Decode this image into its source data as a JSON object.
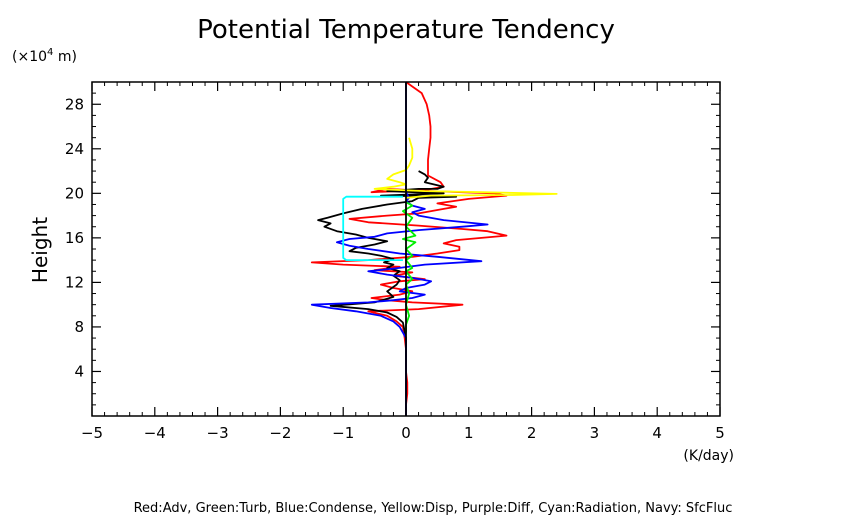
{
  "chart_data": {
    "type": "line",
    "title": "Potential Temperature Tendency",
    "ylabel": "Height",
    "y_units_prefix": "(×10",
    "y_units_exp": "4",
    "y_units_suffix": " m)",
    "x_units": "(K/day)",
    "xlim": [
      -5,
      5
    ],
    "ylim": [
      0,
      30
    ],
    "xticks": [
      -5,
      -4,
      -3,
      -2,
      -1,
      0,
      1,
      2,
      3,
      4,
      5
    ],
    "yticks": [
      4,
      8,
      12,
      16,
      20,
      24,
      28
    ],
    "grid": false,
    "caption": "Red:Adv, Green:Turb, Blue:Condense, Yellow:Disp, Purple:Diff, Cyan:Radiation, Navy: SfcFluc",
    "series": [
      {
        "color": "#ff0000",
        "points": [
          [
            0,
            0
          ],
          [
            0,
            1
          ],
          [
            0.02,
            2
          ],
          [
            0.02,
            3
          ],
          [
            0,
            4
          ],
          [
            0,
            6
          ],
          [
            -0.02,
            7
          ],
          [
            -0.05,
            8
          ],
          [
            -0.15,
            8.5
          ],
          [
            -0.3,
            9
          ],
          [
            -0.6,
            9.4
          ],
          [
            0.2,
            9.6
          ],
          [
            0.9,
            10
          ],
          [
            0.1,
            10.2
          ],
          [
            -0.3,
            10.4
          ],
          [
            -0.55,
            10.6
          ],
          [
            -0.1,
            10.9
          ],
          [
            0.1,
            11.2
          ],
          [
            -0.2,
            11.5
          ],
          [
            -0.4,
            11.8
          ],
          [
            -0.1,
            12.1
          ],
          [
            0.3,
            12.3
          ],
          [
            -0.2,
            12.6
          ],
          [
            0.1,
            12.9
          ],
          [
            -0.5,
            13.1
          ],
          [
            -0.1,
            13.4
          ],
          [
            -1,
            13.6
          ],
          [
            -1.5,
            13.8
          ],
          [
            -0.6,
            14
          ],
          [
            0.1,
            14.3
          ],
          [
            0.5,
            14.6
          ],
          [
            0.85,
            14.9
          ],
          [
            0.85,
            15.2
          ],
          [
            0.6,
            15.5
          ],
          [
            0.8,
            15.8
          ],
          [
            1.2,
            16
          ],
          [
            1.6,
            16.2
          ],
          [
            1.3,
            16.6
          ],
          [
            0.9,
            16.8
          ],
          [
            0.2,
            17.1
          ],
          [
            -0.6,
            17.4
          ],
          [
            -0.9,
            17.7
          ],
          [
            -0.3,
            18
          ],
          [
            0.2,
            18.2
          ],
          [
            0.6,
            18.6
          ],
          [
            0.8,
            18.8
          ],
          [
            0.5,
            19.1
          ],
          [
            1,
            19.5
          ],
          [
            1.6,
            19.8
          ],
          [
            1.4,
            20
          ],
          [
            0.4,
            20.2
          ],
          [
            -0.3,
            20.4
          ],
          [
            -0.55,
            20.1
          ],
          [
            0.3,
            20.3
          ],
          [
            0.6,
            20.6
          ],
          [
            0.55,
            21
          ],
          [
            0.35,
            21.6
          ],
          [
            0.35,
            22.2
          ],
          [
            0.35,
            23
          ],
          [
            0.37,
            24
          ],
          [
            0.39,
            25
          ],
          [
            0.39,
            26
          ],
          [
            0.37,
            27
          ],
          [
            0.33,
            28
          ],
          [
            0.25,
            29
          ],
          [
            0.1,
            29.6
          ],
          [
            0,
            30
          ]
        ]
      },
      {
        "color": "#000000",
        "points": [
          [
            0,
            5
          ],
          [
            0,
            7
          ],
          [
            -0.05,
            8.4
          ],
          [
            -0.15,
            8.9
          ],
          [
            -0.3,
            9.3
          ],
          [
            -0.6,
            9.6
          ],
          [
            -1.2,
            9.9
          ],
          [
            -0.5,
            10.2
          ],
          [
            -0.2,
            10.7
          ],
          [
            -0.3,
            11.2
          ],
          [
            -0.15,
            11.8
          ],
          [
            -0.1,
            12.2
          ],
          [
            -0.2,
            12.6
          ],
          [
            -0.1,
            13
          ],
          [
            -0.3,
            13.3
          ],
          [
            -0.2,
            13.6
          ],
          [
            -0.35,
            13.8
          ],
          [
            -0.2,
            14.1
          ],
          [
            -0.4,
            14.4
          ],
          [
            -0.6,
            14.6
          ],
          [
            -0.9,
            14.8
          ],
          [
            -0.8,
            15.1
          ],
          [
            -0.5,
            15.4
          ],
          [
            -0.3,
            15.7
          ],
          [
            -0.6,
            16
          ],
          [
            -0.8,
            16.3
          ],
          [
            -1.1,
            16.6
          ],
          [
            -1.3,
            17
          ],
          [
            -1.2,
            17.3
          ],
          [
            -1.4,
            17.6
          ],
          [
            -1.25,
            17.8
          ],
          [
            -1.0,
            18.2
          ],
          [
            -0.7,
            18.6
          ],
          [
            -0.3,
            19
          ],
          [
            0.1,
            19.3
          ],
          [
            0.2,
            19.6
          ],
          [
            0.8,
            19.7
          ],
          [
            -0.4,
            19.8
          ],
          [
            0.6,
            20
          ],
          [
            -0.3,
            20.2
          ],
          [
            0.2,
            20.4
          ],
          [
            0.5,
            20.4
          ],
          [
            0.6,
            20.6
          ],
          [
            0.3,
            21
          ],
          [
            0.35,
            21.4
          ],
          [
            0.3,
            21.7
          ],
          [
            0.2,
            22
          ]
        ]
      },
      {
        "color": "#0000ff",
        "points": [
          [
            0,
            0
          ],
          [
            0,
            4
          ],
          [
            0,
            7
          ],
          [
            -0.1,
            8
          ],
          [
            -0.2,
            8.5
          ],
          [
            -0.4,
            9
          ],
          [
            -0.8,
            9.4
          ],
          [
            -1.2,
            9.7
          ],
          [
            -1.5,
            10
          ],
          [
            -0.6,
            10.2
          ],
          [
            -0.2,
            10.4
          ],
          [
            0.1,
            10.6
          ],
          [
            0.3,
            10.9
          ],
          [
            -0.1,
            11.2
          ],
          [
            0,
            11.5
          ],
          [
            0.3,
            11.8
          ],
          [
            0.4,
            12.1
          ],
          [
            0.1,
            12.4
          ],
          [
            -0.3,
            12.7
          ],
          [
            -0.6,
            13
          ],
          [
            -0.1,
            13.3
          ],
          [
            0.3,
            13.6
          ],
          [
            1.2,
            13.9
          ],
          [
            0.5,
            14.3
          ],
          [
            -0.1,
            14.6
          ],
          [
            -0.6,
            15
          ],
          [
            -0.9,
            15.3
          ],
          [
            -1.1,
            15.6
          ],
          [
            -0.9,
            15.9
          ],
          [
            -0.5,
            16.1
          ],
          [
            -0.3,
            16.4
          ],
          [
            0.2,
            16.7
          ],
          [
            0.9,
            17
          ],
          [
            1.3,
            17.2
          ],
          [
            0.6,
            17.6
          ],
          [
            0.2,
            18
          ],
          [
            0.1,
            18.3
          ],
          [
            0.3,
            18.6
          ],
          [
            0.1,
            18.9
          ],
          [
            0,
            19.3
          ],
          [
            0.05,
            19.6
          ],
          [
            0,
            20.1
          ],
          [
            0,
            22
          ],
          [
            0,
            30
          ]
        ]
      },
      {
        "color": "#ffff00",
        "points": [
          [
            0,
            19.6
          ],
          [
            0.4,
            19.8
          ],
          [
            1.7,
            19.85
          ],
          [
            2.4,
            19.95
          ],
          [
            1.2,
            20.1
          ],
          [
            0.3,
            20.2
          ],
          [
            -0.5,
            20.4
          ],
          [
            -0.2,
            20.6
          ],
          [
            0,
            20.8
          ],
          [
            -0.1,
            21
          ],
          [
            -0.3,
            21.3
          ],
          [
            -0.2,
            21.7
          ],
          [
            0,
            22.1
          ],
          [
            0.05,
            22.5
          ],
          [
            0.1,
            23.2
          ],
          [
            0.1,
            24
          ],
          [
            0.05,
            25
          ]
        ]
      },
      {
        "color": "#00ee00",
        "points": [
          [
            0,
            7.5
          ],
          [
            0,
            8.2
          ],
          [
            0.05,
            9
          ],
          [
            0,
            10
          ],
          [
            0.05,
            11
          ],
          [
            0,
            11.8
          ],
          [
            0.1,
            12.3
          ],
          [
            0,
            13
          ],
          [
            0.1,
            13.3
          ],
          [
            0,
            14
          ],
          [
            0.1,
            14.4
          ],
          [
            0,
            15
          ],
          [
            0.15,
            15.6
          ],
          [
            -0.05,
            15.9
          ],
          [
            0.15,
            16.2
          ],
          [
            0,
            17
          ],
          [
            0.1,
            17.8
          ],
          [
            -0.05,
            18.4
          ],
          [
            0.1,
            18.9
          ],
          [
            0,
            19.2
          ]
        ]
      },
      {
        "color": "#00ffff",
        "points": [
          [
            -0.05,
            14
          ],
          [
            -0.95,
            14
          ],
          [
            -1,
            14.2
          ],
          [
            -1,
            19.5
          ],
          [
            -0.95,
            19.7
          ],
          [
            -0.05,
            19.7
          ]
        ]
      },
      {
        "color": "#000000",
        "points": [
          [
            0,
            0
          ],
          [
            0,
            30
          ]
        ]
      }
    ]
  }
}
